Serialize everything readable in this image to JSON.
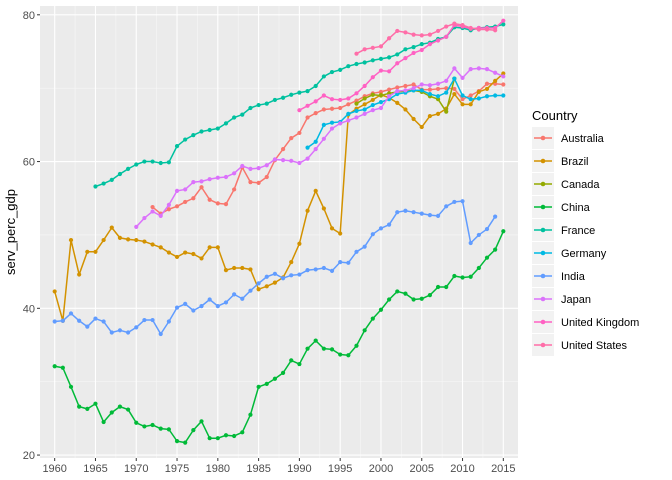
{
  "chart_data": {
    "type": "line",
    "title": "",
    "xlabel": "",
    "ylabel": "serv_perc_gdp",
    "xlim": [
      1958.2,
      2016.8
    ],
    "ylim": [
      19.6,
      81.2
    ],
    "xticks": [
      1960,
      1965,
      1970,
      1975,
      1980,
      1985,
      1990,
      1995,
      2000,
      2005,
      2010,
      2015
    ],
    "xtick_labels": [
      "1960",
      "1965",
      "1970",
      "1975",
      "1980",
      "1985",
      "1990",
      "1995",
      "2000",
      "2005",
      "2010",
      "2015"
    ],
    "yticks": [
      20,
      40,
      60,
      80
    ],
    "ytick_labels": [
      "20",
      "40",
      "60",
      "80"
    ],
    "grid": true,
    "legend": {
      "title": "Country",
      "position": "right"
    },
    "series": [
      {
        "name": "Australia",
        "color": "#F8766D",
        "x": [
          1972,
          1973,
          1974,
          1975,
          1976,
          1977,
          1978,
          1979,
          1980,
          1981,
          1982,
          1983,
          1984,
          1985,
          1986,
          1987,
          1988,
          1989,
          1990,
          1991,
          1992,
          1993,
          1994,
          1995,
          1996,
          1997,
          1998,
          1999,
          2000,
          2001,
          2002,
          2003,
          2004,
          2005,
          2006,
          2007,
          2008,
          2009,
          2010,
          2011,
          2012,
          2013,
          2014,
          2015
        ],
        "y": [
          53.8,
          52.9,
          53.5,
          53.9,
          54.5,
          55.0,
          56.5,
          54.8,
          54.3,
          54.2,
          56.2,
          59.2,
          57.2,
          57.1,
          57.9,
          60.2,
          61.7,
          63.2,
          63.9,
          66.0,
          66.6,
          67.1,
          67.2,
          67.3,
          67.8,
          68.3,
          68.9,
          69.3,
          69.5,
          69.8,
          70.1,
          70.3,
          70.5,
          69.8,
          69.8,
          69.9,
          70.0,
          69.9,
          68.5,
          69.0,
          69.6,
          70.6,
          70.6,
          70.5
        ]
      },
      {
        "name": "Brazil",
        "color": "#D39200",
        "x": [
          1960,
          1961,
          1962,
          1963,
          1964,
          1965,
          1966,
          1967,
          1968,
          1969,
          1970,
          1971,
          1972,
          1973,
          1974,
          1975,
          1976,
          1977,
          1978,
          1979,
          1980,
          1981,
          1982,
          1983,
          1984,
          1985,
          1986,
          1987,
          1988,
          1989,
          1990,
          1991,
          1992,
          1993,
          1994,
          1995,
          1996,
          1997,
          1998,
          1999,
          2000,
          2001,
          2002,
          2003,
          2004,
          2005,
          2006,
          2007,
          2008,
          2009,
          2010,
          2011,
          2012,
          2013,
          2014,
          2015
        ],
        "y": [
          42.3,
          38.3,
          49.3,
          44.6,
          47.7,
          47.7,
          49.3,
          51.0,
          49.6,
          49.4,
          49.3,
          49.1,
          48.7,
          48.3,
          47.6,
          47.0,
          47.6,
          47.4,
          46.8,
          48.3,
          48.3,
          45.2,
          45.5,
          45.5,
          45.3,
          42.6,
          43.0,
          43.5,
          44.2,
          46.3,
          48.8,
          53.3,
          56.0,
          53.6,
          50.9,
          50.2,
          66.4,
          67.2,
          67.8,
          68.4,
          69.1,
          68.7,
          68.0,
          67.1,
          65.8,
          64.7,
          66.2,
          66.5,
          67.2,
          69.2,
          67.8,
          67.8,
          69.5,
          69.9,
          71.0,
          72.0
        ]
      },
      {
        "name": "Canada",
        "color": "#93AA00",
        "x": [
          1997,
          1998,
          1999,
          2000,
          2001,
          2002,
          2003,
          2004,
          2005,
          2006,
          2007,
          2008,
          2009
        ],
        "y": [
          67.9,
          68.6,
          69.1,
          69.0,
          69.3,
          69.5,
          69.6,
          69.7,
          69.5,
          68.9,
          68.5,
          66.8,
          71.3
        ]
      },
      {
        "name": "China",
        "color": "#00BA38",
        "x": [
          1960,
          1961,
          1962,
          1963,
          1964,
          1965,
          1966,
          1967,
          1968,
          1969,
          1970,
          1971,
          1972,
          1973,
          1974,
          1975,
          1976,
          1977,
          1978,
          1979,
          1980,
          1981,
          1982,
          1983,
          1984,
          1985,
          1986,
          1987,
          1988,
          1989,
          1990,
          1991,
          1992,
          1993,
          1994,
          1995,
          1996,
          1997,
          1998,
          1999,
          2000,
          2001,
          2002,
          2003,
          2004,
          2005,
          2006,
          2007,
          2008,
          2009,
          2010,
          2011,
          2012,
          2013,
          2014,
          2015
        ],
        "y": [
          32.1,
          31.9,
          29.3,
          26.6,
          26.3,
          27.0,
          24.5,
          25.8,
          26.6,
          26.2,
          24.4,
          23.9,
          24.1,
          23.6,
          23.5,
          21.9,
          21.7,
          23.4,
          24.6,
          22.3,
          22.3,
          22.7,
          22.6,
          23.1,
          25.5,
          29.3,
          29.7,
          30.4,
          31.2,
          32.9,
          32.4,
          34.5,
          35.6,
          34.5,
          34.4,
          33.7,
          33.6,
          34.9,
          37.0,
          38.6,
          39.8,
          41.2,
          42.3,
          42.0,
          41.2,
          41.3,
          41.8,
          42.9,
          42.9,
          44.4,
          44.2,
          44.3,
          45.5,
          46.9,
          48.0,
          50.5
        ]
      },
      {
        "name": "France",
        "color": "#00C19F",
        "x": [
          1965,
          1966,
          1967,
          1968,
          1969,
          1970,
          1971,
          1972,
          1973,
          1974,
          1975,
          1976,
          1977,
          1978,
          1979,
          1980,
          1981,
          1982,
          1983,
          1984,
          1985,
          1986,
          1987,
          1988,
          1989,
          1990,
          1991,
          1992,
          1993,
          1994,
          1995,
          1996,
          1997,
          1998,
          1999,
          2000,
          2001,
          2002,
          2003,
          2004,
          2005,
          2006,
          2007,
          2008,
          2009,
          2010,
          2011,
          2012,
          2013,
          2014,
          2015
        ],
        "y": [
          56.6,
          57.0,
          57.5,
          58.3,
          59.0,
          59.6,
          60.0,
          60.0,
          59.8,
          59.9,
          62.1,
          63.0,
          63.6,
          64.1,
          64.3,
          64.5,
          65.2,
          66.0,
          66.4,
          67.3,
          67.7,
          67.9,
          68.4,
          68.7,
          69.1,
          69.4,
          69.6,
          70.3,
          71.6,
          72.2,
          72.5,
          73.0,
          73.3,
          73.5,
          73.8,
          74.0,
          74.2,
          74.6,
          75.3,
          75.6,
          76.0,
          76.2,
          76.7,
          77.0,
          78.3,
          78.2,
          77.9,
          78.2,
          78.3,
          78.4,
          78.7
        ]
      },
      {
        "name": "Germany",
        "color": "#00B9E3",
        "x": [
          1991,
          1992,
          1993,
          1994,
          1995,
          1996,
          1997,
          1998,
          1999,
          2000,
          2001,
          2002,
          2003,
          2004,
          2005,
          2006,
          2007,
          2008,
          2009,
          2010,
          2011,
          2012,
          2013,
          2014,
          2015
        ],
        "y": [
          61.9,
          62.7,
          65.0,
          65.3,
          65.4,
          66.5,
          66.9,
          67.1,
          67.7,
          68.1,
          68.5,
          69.2,
          69.4,
          69.7,
          69.7,
          69.2,
          68.9,
          69.4,
          71.3,
          69.0,
          68.5,
          68.6,
          68.9,
          69.0,
          69.0
        ]
      },
      {
        "name": "India",
        "color": "#619CFF",
        "x": [
          1960,
          1961,
          1962,
          1963,
          1964,
          1965,
          1966,
          1967,
          1968,
          1969,
          1970,
          1971,
          1972,
          1973,
          1974,
          1975,
          1976,
          1977,
          1978,
          1979,
          1980,
          1981,
          1982,
          1983,
          1984,
          1985,
          1986,
          1987,
          1988,
          1989,
          1990,
          1991,
          1992,
          1993,
          1994,
          1995,
          1996,
          1997,
          1998,
          1999,
          2000,
          2001,
          2002,
          2003,
          2004,
          2005,
          2006,
          2007,
          2008,
          2009,
          2010,
          2011,
          2012,
          2013,
          2014
        ],
        "y": [
          38.2,
          38.3,
          39.3,
          38.3,
          37.5,
          38.6,
          38.2,
          36.7,
          37.0,
          36.7,
          37.4,
          38.4,
          38.4,
          36.5,
          38.2,
          40.1,
          40.6,
          39.7,
          40.3,
          41.2,
          40.3,
          40.8,
          41.9,
          41.3,
          42.4,
          43.4,
          44.3,
          44.7,
          44.1,
          44.5,
          44.6,
          45.2,
          45.3,
          45.5,
          45.1,
          46.3,
          46.2,
          47.7,
          48.4,
          50.1,
          50.9,
          51.4,
          53.1,
          53.3,
          53.1,
          52.9,
          52.7,
          52.6,
          53.9,
          54.5,
          54.6,
          48.9,
          50.0,
          50.8,
          52.5
        ]
      },
      {
        "name": "Japan",
        "color": "#DB72FB",
        "x": [
          1970,
          1971,
          1972,
          1973,
          1974,
          1975,
          1976,
          1977,
          1978,
          1979,
          1980,
          1981,
          1982,
          1983,
          1984,
          1985,
          1986,
          1987,
          1988,
          1989,
          1990,
          1991,
          1992,
          1993,
          1994,
          1995,
          1996,
          1997,
          1998,
          1999,
          2000,
          2001,
          2002,
          2003,
          2004,
          2005,
          2006,
          2007,
          2008,
          2009,
          2010,
          2011,
          2012,
          2013,
          2014,
          2015
        ],
        "y": [
          51.1,
          52.3,
          53.2,
          52.6,
          54.1,
          56.0,
          56.2,
          57.2,
          57.3,
          57.6,
          57.8,
          57.9,
          58.4,
          59.4,
          59.0,
          59.1,
          59.5,
          60.3,
          60.2,
          60.1,
          59.8,
          60.4,
          61.7,
          63.1,
          64.5,
          65.2,
          65.6,
          66.0,
          66.5,
          67.0,
          67.3,
          68.9,
          69.6,
          69.7,
          70.0,
          70.5,
          70.4,
          70.6,
          71.0,
          72.7,
          71.4,
          72.6,
          72.7,
          72.6,
          72.1,
          71.6
        ]
      },
      {
        "name": "United Kingdom",
        "color": "#FF61C3",
        "x": [
          1990,
          1991,
          1992,
          1993,
          1994,
          1995,
          1996,
          1997,
          1998,
          1999,
          2000,
          2001,
          2002,
          2003,
          2004,
          2005,
          2006,
          2007,
          2008,
          2009,
          2010,
          2011,
          2012,
          2013,
          2014,
          2015
        ],
        "y": [
          67.0,
          67.6,
          68.2,
          69.0,
          68.5,
          68.4,
          68.6,
          69.3,
          70.3,
          71.5,
          72.4,
          72.3,
          73.4,
          74.1,
          74.8,
          75.2,
          76.0,
          76.5,
          77.0,
          78.6,
          78.4,
          78.1,
          78.2,
          78.2,
          78.2,
          79.2
        ]
      },
      {
        "name": "United States",
        "color": "#FF6DA8",
        "x": [
          1997,
          1998,
          1999,
          2000,
          2001,
          2002,
          2003,
          2004,
          2005,
          2006,
          2007,
          2008,
          2009,
          2010,
          2011,
          2012,
          2013,
          2014
        ],
        "y": [
          74.7,
          75.3,
          75.5,
          75.7,
          76.8,
          77.8,
          77.6,
          77.3,
          77.2,
          77.3,
          77.8,
          78.4,
          78.8,
          78.6,
          78.2,
          78.0,
          78.0,
          77.9
        ]
      }
    ]
  }
}
